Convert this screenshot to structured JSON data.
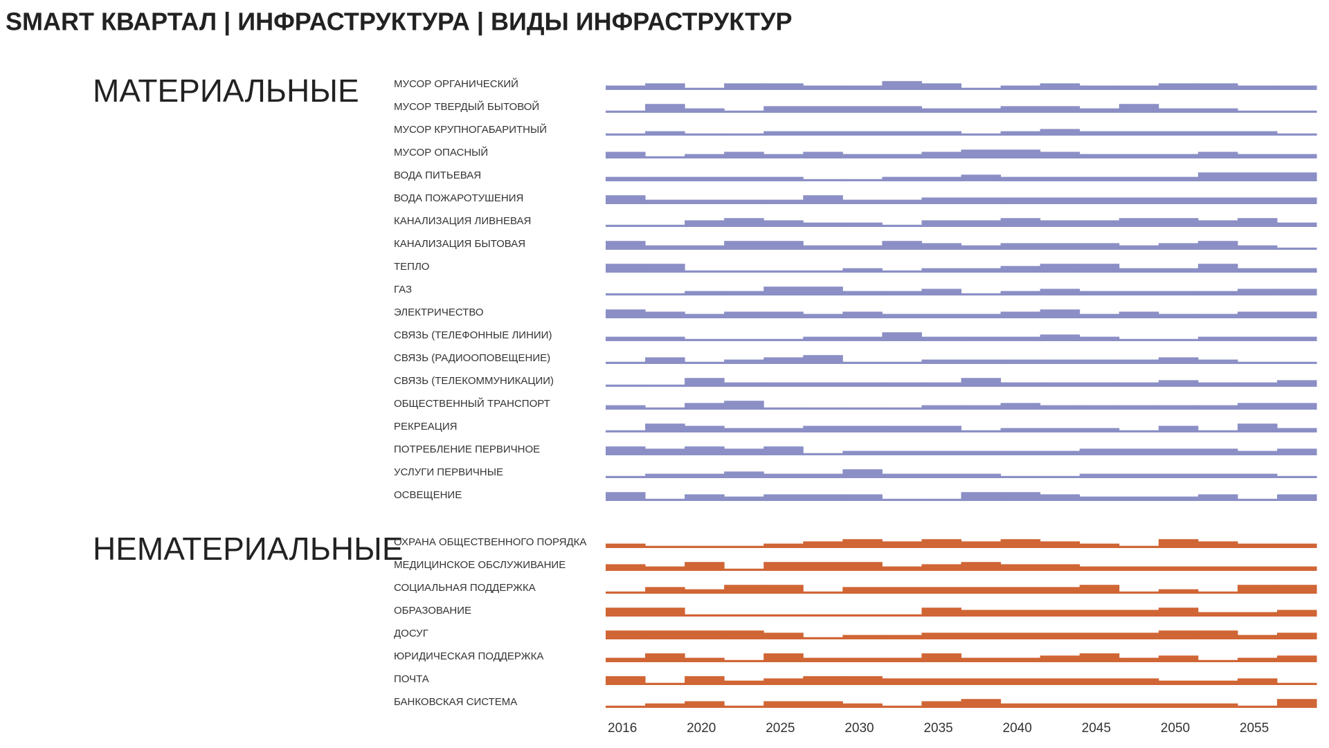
{
  "title": "SMART КВАРТАЛ | ИНФРАСТРУКТУРА | ВИДЫ ИНФРАСТРУКТУР",
  "chart_data": [
    {
      "type": "step",
      "title": "МАТЕРИАЛЬНЫЕ",
      "color": "#8b8fc5",
      "series": [
        {
          "name": "МУСОР ОРГАНИЧЕСКИЙ",
          "values": [
            2,
            3,
            1,
            3,
            3,
            2,
            2,
            4,
            3,
            1,
            2,
            3,
            2,
            2,
            3,
            3,
            2,
            2
          ]
        },
        {
          "name": "МУСОР ТВЕРДЫЙ БЫТОВОЙ",
          "values": [
            1,
            4,
            2,
            1,
            3,
            3,
            3,
            3,
            2,
            2,
            3,
            3,
            2,
            4,
            2,
            2,
            1,
            1
          ]
        },
        {
          "name": "МУСОР КРУПНОГАБАРИТНЫЙ",
          "values": [
            1,
            2,
            1,
            1,
            2,
            2,
            2,
            2,
            2,
            1,
            2,
            3,
            2,
            2,
            2,
            2,
            2,
            1
          ]
        },
        {
          "name": "МУСОР ОПАСНЫЙ",
          "values": [
            3,
            1,
            2,
            3,
            2,
            3,
            2,
            2,
            3,
            4,
            4,
            3,
            2,
            2,
            2,
            3,
            2,
            2
          ]
        },
        {
          "name": "ВОДА ПИТЬЕВАЯ",
          "values": [
            2,
            2,
            2,
            2,
            2,
            1,
            1,
            2,
            2,
            3,
            2,
            2,
            2,
            2,
            2,
            4,
            4,
            4
          ]
        },
        {
          "name": "ВОДА ПОЖАРОТУШЕНИЯ",
          "values": [
            4,
            2,
            2,
            2,
            2,
            4,
            2,
            2,
            3,
            3,
            3,
            3,
            3,
            3,
            3,
            3,
            3,
            3
          ]
        },
        {
          "name": "КАНАЛИЗАЦИЯ ЛИВНЕВАЯ",
          "values": [
            1,
            1,
            3,
            4,
            3,
            2,
            2,
            1,
            3,
            3,
            4,
            3,
            3,
            4,
            4,
            3,
            4,
            2
          ]
        },
        {
          "name": "КАНАЛИЗАЦИЯ БЫТОВАЯ",
          "values": [
            4,
            2,
            2,
            4,
            4,
            2,
            2,
            4,
            3,
            2,
            3,
            3,
            3,
            2,
            3,
            4,
            2,
            1
          ]
        },
        {
          "name": "ТЕПЛО",
          "values": [
            4,
            4,
            1,
            1,
            1,
            1,
            2,
            1,
            2,
            2,
            3,
            4,
            4,
            2,
            2,
            4,
            2,
            2
          ]
        },
        {
          "name": "ГАЗ",
          "values": [
            1,
            1,
            2,
            2,
            4,
            4,
            2,
            2,
            3,
            1,
            2,
            3,
            2,
            2,
            2,
            2,
            3,
            3
          ]
        },
        {
          "name": "ЭЛЕКТРИЧЕСТВО",
          "values": [
            4,
            3,
            2,
            3,
            3,
            2,
            3,
            2,
            2,
            2,
            3,
            4,
            2,
            3,
            2,
            2,
            3,
            3
          ]
        },
        {
          "name": "СВЯЗЬ (ТЕЛЕФОННЫЕ ЛИНИИ)",
          "values": [
            2,
            2,
            1,
            1,
            1,
            2,
            2,
            4,
            2,
            2,
            2,
            3,
            2,
            1,
            1,
            2,
            2,
            2
          ]
        },
        {
          "name": "СВЯЗЬ (РАДИООПОВЕЩЕНИЕ)",
          "values": [
            1,
            3,
            1,
            2,
            3,
            4,
            1,
            1,
            2,
            2,
            2,
            2,
            2,
            2,
            3,
            2,
            1,
            1
          ]
        },
        {
          "name": "СВЯЗЬ (ТЕЛЕКОММУНИКАЦИИ)",
          "values": [
            1,
            1,
            4,
            2,
            2,
            2,
            2,
            2,
            2,
            4,
            2,
            2,
            2,
            2,
            3,
            2,
            2,
            3
          ]
        },
        {
          "name": "ОБЩЕСТВЕННЫЙ ТРАНСПОРТ",
          "values": [
            2,
            1,
            3,
            4,
            1,
            1,
            1,
            1,
            2,
            2,
            3,
            2,
            2,
            2,
            2,
            2,
            3,
            3
          ]
        },
        {
          "name": "РЕКРЕАЦИЯ",
          "values": [
            1,
            4,
            3,
            2,
            2,
            3,
            3,
            3,
            3,
            1,
            2,
            2,
            2,
            1,
            3,
            1,
            4,
            2
          ]
        },
        {
          "name": "ПОТРЕБЛЕНИЕ ПЕРВИЧНОЕ",
          "values": [
            4,
            3,
            4,
            3,
            4,
            1,
            2,
            2,
            2,
            2,
            2,
            2,
            3,
            3,
            3,
            3,
            2,
            3
          ]
        },
        {
          "name": "УСЛУГИ ПЕРВИЧНЫЕ",
          "values": [
            1,
            2,
            2,
            3,
            2,
            2,
            4,
            2,
            2,
            2,
            1,
            1,
            2,
            2,
            2,
            2,
            2,
            1
          ]
        },
        {
          "name": "ОСВЕЩЕНИЕ",
          "values": [
            4,
            1,
            3,
            2,
            3,
            3,
            3,
            1,
            1,
            4,
            4,
            3,
            2,
            2,
            2,
            3,
            1,
            3
          ]
        }
      ]
    },
    {
      "type": "step",
      "title": "НЕМАТЕРИАЛЬНЫЕ",
      "color": "#d06535",
      "categories": [
        "2016",
        null,
        "2020",
        null,
        "2025",
        null,
        "2030",
        null,
        "2035",
        null,
        "2040",
        null,
        "2045",
        null,
        "2050",
        null,
        "2055",
        null
      ],
      "series": [
        {
          "name": "ОХРАНА ОБЩЕСТВЕННОГО ПОРЯДКА",
          "values": [
            2,
            1,
            1,
            1,
            2,
            3,
            4,
            3,
            4,
            3,
            4,
            3,
            2,
            1,
            4,
            3,
            2,
            2
          ]
        },
        {
          "name": "МЕДИЦИНСКОЕ ОБСЛУЖИВАНИЕ",
          "values": [
            3,
            2,
            4,
            1,
            4,
            4,
            4,
            2,
            3,
            4,
            3,
            3,
            2,
            2,
            2,
            2,
            2,
            2
          ]
        },
        {
          "name": "СОЦИАЛЬНАЯ ПОДДЕРЖКА",
          "values": [
            1,
            3,
            2,
            4,
            4,
            1,
            3,
            3,
            3,
            3,
            3,
            3,
            4,
            1,
            2,
            1,
            4,
            4
          ]
        },
        {
          "name": "ОБРАЗОВАНИЕ",
          "values": [
            4,
            4,
            1,
            1,
            1,
            1,
            1,
            1,
            4,
            3,
            3,
            3,
            3,
            3,
            4,
            2,
            2,
            3
          ]
        },
        {
          "name": "ДОСУГ",
          "values": [
            4,
            4,
            4,
            4,
            3,
            1,
            2,
            2,
            3,
            3,
            3,
            3,
            3,
            3,
            4,
            4,
            2,
            3
          ]
        },
        {
          "name": "ЮРИДИЧЕСКАЯ ПОДДЕРЖКА",
          "values": [
            2,
            4,
            2,
            1,
            4,
            2,
            2,
            2,
            4,
            2,
            2,
            3,
            4,
            2,
            3,
            1,
            2,
            3
          ]
        },
        {
          "name": "ПОЧТА",
          "values": [
            4,
            1,
            4,
            2,
            3,
            4,
            4,
            3,
            3,
            3,
            3,
            3,
            3,
            3,
            2,
            2,
            3,
            1
          ]
        },
        {
          "name": "БАНКОВСКАЯ СИСТЕМА",
          "values": [
            1,
            2,
            3,
            1,
            3,
            3,
            2,
            1,
            3,
            4,
            2,
            2,
            2,
            2,
            2,
            2,
            1,
            4
          ]
        }
      ]
    }
  ]
}
